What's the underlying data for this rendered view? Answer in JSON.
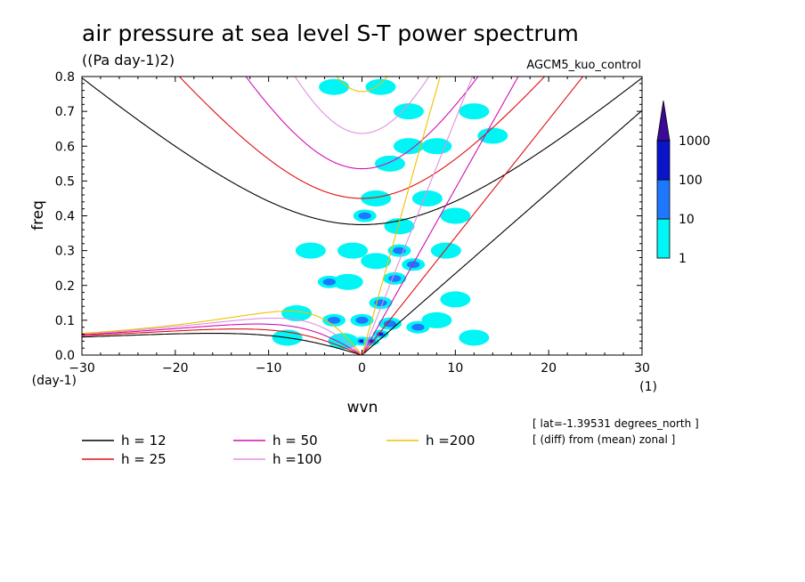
{
  "chart_data": {
    "type": "heatmap",
    "title": "air pressure at sea level S-T power spectrum",
    "units": "((Pa day-1)2)",
    "run_label": "AGCM5_kuo_control",
    "xlabel": "wvn",
    "ylabel": "freq",
    "x_unit": "(1)",
    "y_unit": "(day-1)",
    "xlim": [
      -30,
      30
    ],
    "ylim": [
      0,
      0.8
    ],
    "xticks": [
      -30,
      -20,
      -10,
      0,
      10,
      20,
      30
    ],
    "xtick_labels": [
      "−30",
      "−20",
      "−10",
      "0",
      "10",
      "20",
      "30"
    ],
    "yticks": [
      0,
      0.1,
      0.2,
      0.3,
      0.4,
      0.5,
      0.6,
      0.7,
      0.8
    ],
    "ytick_labels": [
      "0.0",
      "0.1",
      "0.2",
      "0.3",
      "0.4",
      "0.5",
      "0.6",
      "0.7",
      "0.8"
    ],
    "colorbar": {
      "levels": [
        1,
        10,
        100,
        1000
      ],
      "labels": [
        "1",
        "10",
        "100",
        "1000"
      ],
      "colors": [
        "#00f5f5",
        "#1e78ff",
        "#0a14c8",
        "#3c0a96"
      ]
    },
    "blobs": [
      {
        "x": 0,
        "y": 0.04,
        "level": 3
      },
      {
        "x": 1,
        "y": 0.04,
        "level": 3
      },
      {
        "x": 2,
        "y": 0.06,
        "level": 3
      },
      {
        "x": 3,
        "y": 0.09,
        "level": 2
      },
      {
        "x": 0,
        "y": 0.1,
        "level": 2
      },
      {
        "x": -2,
        "y": 0.04,
        "level": 1
      },
      {
        "x": -3,
        "y": 0.1,
        "level": 2
      },
      {
        "x": -3.5,
        "y": 0.21,
        "level": 2
      },
      {
        "x": -1.5,
        "y": 0.21,
        "level": 1
      },
      {
        "x": 2,
        "y": 0.15,
        "level": 2
      },
      {
        "x": 3.5,
        "y": 0.22,
        "level": 2
      },
      {
        "x": 4,
        "y": 0.3,
        "level": 2
      },
      {
        "x": 0.3,
        "y": 0.4,
        "level": 2
      },
      {
        "x": 1.5,
        "y": 0.45,
        "level": 1
      },
      {
        "x": 5.5,
        "y": 0.26,
        "level": 2
      },
      {
        "x": -5.5,
        "y": 0.3,
        "level": 1
      },
      {
        "x": 6,
        "y": 0.08,
        "level": 2
      },
      {
        "x": 8,
        "y": 0.1,
        "level": 1
      },
      {
        "x": 10,
        "y": 0.16,
        "level": 1
      },
      {
        "x": 12,
        "y": 0.05,
        "level": 1
      },
      {
        "x": 3,
        "y": 0.55,
        "level": 1
      },
      {
        "x": 5,
        "y": 0.6,
        "level": 1
      },
      {
        "x": 8,
        "y": 0.6,
        "level": 1
      },
      {
        "x": 10,
        "y": 0.4,
        "level": 1
      },
      {
        "x": 12,
        "y": 0.7,
        "level": 1
      },
      {
        "x": 2,
        "y": 0.77,
        "level": 1
      },
      {
        "x": -3,
        "y": 0.77,
        "level": 1
      },
      {
        "x": 5,
        "y": 0.7,
        "level": 1
      },
      {
        "x": -7,
        "y": 0.12,
        "level": 1
      },
      {
        "x": -8,
        "y": 0.05,
        "level": 1
      },
      {
        "x": 14,
        "y": 0.63,
        "level": 1
      },
      {
        "x": 7,
        "y": 0.45,
        "level": 1
      },
      {
        "x": 1.5,
        "y": 0.27,
        "level": 1
      },
      {
        "x": -1,
        "y": 0.3,
        "level": 1
      },
      {
        "x": 4,
        "y": 0.37,
        "level": 1
      },
      {
        "x": 9,
        "y": 0.3,
        "level": 1
      }
    ],
    "series": [
      {
        "name": "h = 12",
        "equivalent_depth": 12,
        "color": "#000000"
      },
      {
        "name": "h = 25",
        "equivalent_depth": 25,
        "color": "#e01010"
      },
      {
        "name": "h = 50",
        "equivalent_depth": 50,
        "color": "#d010b0"
      },
      {
        "name": "h =100",
        "equivalent_depth": 100,
        "color": "#e090e0"
      },
      {
        "name": "h =200",
        "equivalent_depth": 200,
        "color": "#f0c000"
      }
    ],
    "notes": [
      "[ lat=-1.39531 degrees_north ]",
      "[ (diff) from (mean) zonal ]"
    ]
  }
}
